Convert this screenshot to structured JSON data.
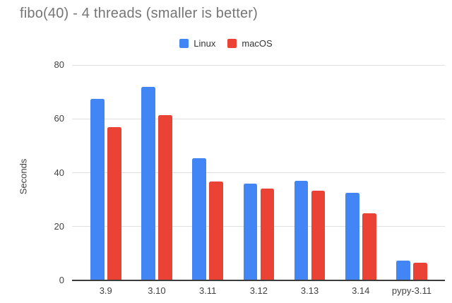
{
  "chart_data": {
    "type": "bar",
    "title": "fibo(40) - 4 threads (smaller is better)",
    "ylabel": "Seconds",
    "xlabel": "",
    "categories": [
      "3.9",
      "3.10",
      "3.11",
      "3.12",
      "3.13",
      "3.14",
      "pypy-3.11"
    ],
    "series": [
      {
        "name": "Linux",
        "color": "#4285F4",
        "values": [
          67.5,
          72.0,
          45.4,
          36.0,
          37.0,
          32.4,
          7.4
        ]
      },
      {
        "name": "macOS",
        "color": "#EA4335",
        "values": [
          57.0,
          61.5,
          36.8,
          34.0,
          33.3,
          24.8,
          6.5
        ]
      }
    ],
    "ylim": [
      0,
      80
    ],
    "yticks": [
      0,
      20,
      40,
      60,
      80
    ],
    "grid": true,
    "legend_position": "top"
  }
}
